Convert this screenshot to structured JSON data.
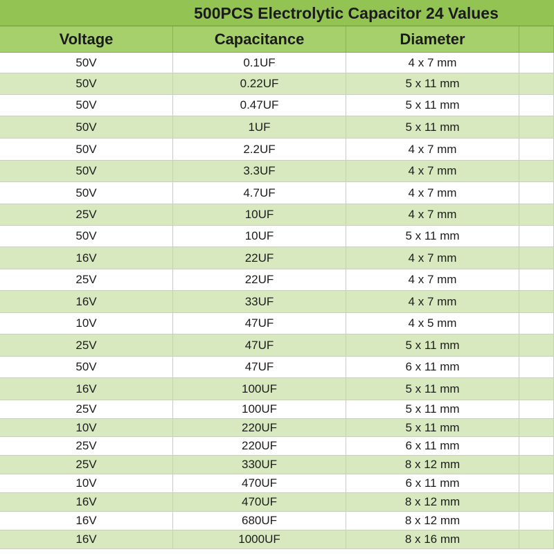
{
  "title": "500PCS Electrolytic Capacitor 24 Values",
  "headers": [
    "Voltage",
    "Capacitance",
    "Diameter"
  ],
  "rows": [
    [
      "50V",
      "0.1UF",
      "4 x 7 mm"
    ],
    [
      "50V",
      "0.22UF",
      "5 x 11 mm"
    ],
    [
      "50V",
      "0.47UF",
      "5 x 11 mm"
    ],
    [
      "50V",
      "1UF",
      "5 x 11 mm"
    ],
    [
      "50V",
      "2.2UF",
      "4 x 7 mm"
    ],
    [
      "50V",
      "3.3UF",
      "4 x 7 mm"
    ],
    [
      "50V",
      "4.7UF",
      "4 x 7 mm"
    ],
    [
      "25V",
      "10UF",
      "4 x 7 mm"
    ],
    [
      "50V",
      "10UF",
      "5 x 11 mm"
    ],
    [
      "16V",
      "22UF",
      "4 x 7 mm"
    ],
    [
      "25V",
      "22UF",
      "4 x 7 mm"
    ],
    [
      "16V",
      "33UF",
      "4 x 7 mm"
    ],
    [
      "10V",
      "47UF",
      "4 x 5 mm"
    ],
    [
      "25V",
      "47UF",
      "5 x 11 mm"
    ],
    [
      "50V",
      "47UF",
      "6 x 11 mm"
    ],
    [
      "16V",
      "100UF",
      "5 x 11 mm"
    ],
    [
      "25V",
      "100UF",
      "5 x 11 mm"
    ],
    [
      "10V",
      "220UF",
      "5 x 11 mm"
    ],
    [
      "25V",
      "220UF",
      "6 x 11 mm"
    ],
    [
      "25V",
      "330UF",
      "8 x 12 mm"
    ],
    [
      "10V",
      "470UF",
      "6 x 11 mm"
    ],
    [
      "16V",
      "470UF",
      "8 x 12 mm"
    ],
    [
      "16V",
      "680UF",
      "8 x 12 mm"
    ],
    [
      "16V",
      "1000UF",
      "8 x 16 mm"
    ]
  ]
}
